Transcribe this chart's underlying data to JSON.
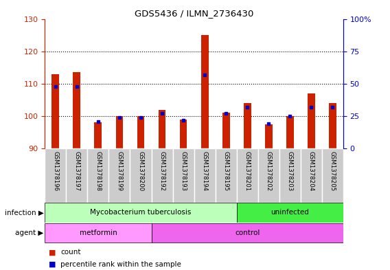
{
  "title": "GDS5436 / ILMN_2736430",
  "samples": [
    "GSM1378196",
    "GSM1378197",
    "GSM1378198",
    "GSM1378199",
    "GSM1378200",
    "GSM1378192",
    "GSM1378193",
    "GSM1378194",
    "GSM1378195",
    "GSM1378201",
    "GSM1378202",
    "GSM1378203",
    "GSM1378204",
    "GSM1378205"
  ],
  "counts": [
    113,
    113.5,
    98,
    100,
    100,
    102,
    99,
    125,
    101,
    104,
    97.5,
    100,
    107,
    104
  ],
  "percentiles": [
    48,
    48,
    21,
    24,
    24,
    27,
    22,
    57,
    27,
    32,
    19,
    25,
    32,
    32
  ],
  "ymin": 90,
  "ymax": 130,
  "yticks_left": [
    90,
    100,
    110,
    120,
    130
  ],
  "yticks_right": [
    0,
    25,
    50,
    75,
    100
  ],
  "ytick_right_labels": [
    "0",
    "25",
    "50",
    "75",
    "100%"
  ],
  "bar_color": "#cc2200",
  "percentile_color": "#0000cc",
  "infection_groups": [
    {
      "label": "Mycobacterium tuberculosis",
      "start": 0,
      "end": 9,
      "color": "#bbffbb"
    },
    {
      "label": "uninfected",
      "start": 9,
      "end": 14,
      "color": "#44ee44"
    }
  ],
  "agent_groups": [
    {
      "label": "metformin",
      "start": 0,
      "end": 5,
      "color": "#ff99ff"
    },
    {
      "label": "control",
      "start": 5,
      "end": 14,
      "color": "#ee66ee"
    }
  ],
  "infection_label": "infection",
  "agent_label": "agent",
  "legend_count_label": "count",
  "legend_percentile_label": "percentile rank within the sample",
  "left_color": "#cc2200",
  "right_color": "#0000cc",
  "tick_label_bg": "#cccccc",
  "bar_width": 0.35
}
